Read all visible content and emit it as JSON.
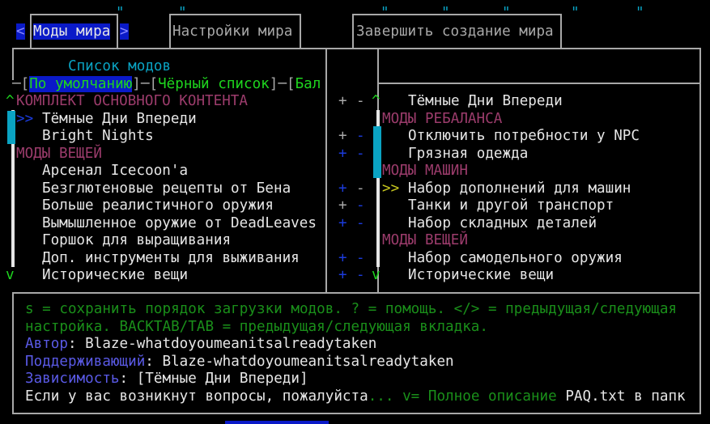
{
  "tabs": [
    {
      "label": "Моды мира",
      "active": true
    },
    {
      "label": "Настройки мира"
    },
    {
      "label": "Завершить создание мира"
    }
  ],
  "tab_prev": "<",
  "tab_next": ">",
  "left_panel": {
    "title": "Список модов",
    "filters": [
      {
        "label": "По умолчанию",
        "active": true
      },
      {
        "label": "Чёрный список"
      },
      {
        "label": "Бал"
      }
    ],
    "scroll_up": "^",
    "scroll_down": "v",
    "cursor": ">>",
    "rows": [
      {
        "text": "КОМПЛЕКТ ОСНОВНОГО КОНТЕНТА",
        "category": true
      },
      {
        "text": "Тёмные Дни Впереди",
        "selected": true
      },
      {
        "text": "Bright Nights"
      },
      {
        "text": "МОДЫ ВЕЩЕЙ",
        "category": true
      },
      {
        "text": "Арсенал Icecoon'a"
      },
      {
        "text": "Безглютеновые рецепты от Бена"
      },
      {
        "text": "Больше реалистичного оружия"
      },
      {
        "text": "Вымышленное оружие от DeadLeaves"
      },
      {
        "text": "Горшок для выращивания"
      },
      {
        "text": "Доп. инструменты для выживания"
      },
      {
        "text": "Исторические вещи"
      }
    ]
  },
  "plus_minus": [
    {
      "plus": "+",
      "minus": "-",
      "plus_color": "#a8a8a8",
      "minus_color": "#a8a8a8"
    },
    null,
    {
      "plus": "+",
      "minus": "-",
      "plus_color": "#a8a8a8",
      "minus_color": "#1b3bdb"
    },
    {
      "plus": "+",
      "minus": "-",
      "plus_color": "#1b3bdb",
      "minus_color": "#1b3bdb"
    },
    null,
    {
      "plus": "+",
      "minus": "-",
      "plus_color": "#1b3bdb",
      "minus_color": "#a8a8a8"
    },
    {
      "plus": "+",
      "minus": "-",
      "plus_color": "#a8a8a8",
      "minus_color": "#1b3bdb"
    },
    {
      "plus": "+",
      "minus": "-",
      "plus_color": "#1b3bdb",
      "minus_color": "#1b3bdb"
    },
    null,
    {
      "plus": "+",
      "minus": "-",
      "plus_color": "#1b3bdb",
      "minus_color": "#1b3bdb"
    },
    {
      "plus": "+",
      "minus": "-",
      "plus_color": "#1b3bdb",
      "minus_color": "#1b3bdb"
    }
  ],
  "right_panel": {
    "scroll_up": "^",
    "scroll_down": "v",
    "cursor": ">>",
    "rows": [
      {
        "text": "Тёмные Дни Впереди"
      },
      {
        "text": "МОДЫ РЕБАЛАНСА",
        "category": true
      },
      {
        "text": "Отключить потребности у NPC"
      },
      {
        "text": "Грязная одежда"
      },
      {
        "text": "МОДЫ МАШИН",
        "category": true
      },
      {
        "text": "Набор дополнений для машин",
        "selected": true
      },
      {
        "text": "Танки и другой транспорт"
      },
      {
        "text": "Набор складных деталей"
      },
      {
        "text": "МОДЫ ВЕЩЕЙ",
        "category": true
      },
      {
        "text": "Набор самодельного оружия"
      },
      {
        "text": "Исторические вещи"
      }
    ]
  },
  "info": {
    "help1": "s = сохранить порядок загрузки модов. ? = помощь. </> = предыдущая/следующая",
    "help2": "настройка. BACKTAB/TAB = предыдущая/следующая вкладка.",
    "author_label": "Автор",
    "author": "Blaze-whatdoyoumeanitsalreadytaken",
    "maintainer_label": "Поддерживающий",
    "maintainer": "Blaze-whatdoyoumeanitsalreadytaken",
    "dependency_label": "Зависимость",
    "dependency": "[Тёмные Дни Впереди]",
    "desc": "Если у вас возникнут вопросы, пожалуйста",
    "ellipsis": "...",
    "more": " v= Полное описание ",
    "desc_tail": "PAQ.txt в папк",
    "sep": ": "
  },
  "colors": {
    "highlight": "#0a1ac8",
    "category": "#9c3c6c",
    "scrollbar": "#0aa3c3",
    "help": "#1a8f1a",
    "label": "#5a5ae6"
  }
}
